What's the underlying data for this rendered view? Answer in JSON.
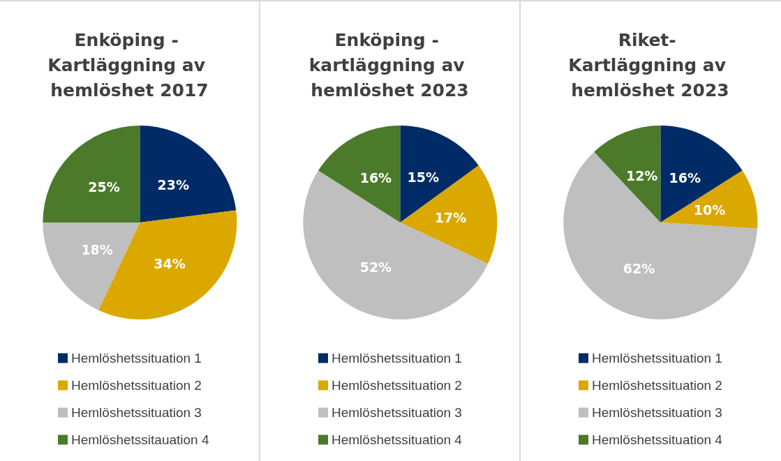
{
  "chart_data": [
    {
      "type": "pie",
      "title": "Enköping - Kartläggning av hemlöshet 2017",
      "categories": [
        "Hemlöshetssituation 1",
        "Hemlöshetssituation 2",
        "Hemlöshetssituation 3",
        "Hemlöshetssitauation 4"
      ],
      "values": [
        23,
        34,
        18,
        25
      ],
      "value_labels": [
        "23%",
        "34%",
        "18%",
        "25%"
      ],
      "colors": [
        "#002b66",
        "#dba800",
        "#bfbfbf",
        "#4a7a2a"
      ],
      "legend": "bottom"
    },
    {
      "type": "pie",
      "title": "Enköping - kartläggning av hemlöshet 2023",
      "categories": [
        "Hemlöshetssituation 1",
        "Hemlöshetssituation 2",
        "Hemlöshetssituation 3",
        "Hemlöshetssituation 4"
      ],
      "values": [
        15,
        17,
        52,
        16
      ],
      "value_labels": [
        "15%",
        "17%",
        "52%",
        "16%"
      ],
      "colors": [
        "#002b66",
        "#dba800",
        "#bfbfbf",
        "#4a7a2a"
      ],
      "legend": "bottom"
    },
    {
      "type": "pie",
      "title": "Riket- Kartläggning av hemlöshet 2023",
      "categories": [
        "Hemlöshetssituation 1",
        "Hemlöshetssituation 2",
        "Hemlöshetssituation 3",
        "Hemlöshetssituation 4"
      ],
      "values": [
        16,
        10,
        62,
        12
      ],
      "value_labels": [
        "16%",
        "10%",
        "62%",
        "12%"
      ],
      "colors": [
        "#002b66",
        "#dba800",
        "#bfbfbf",
        "#4a7a2a"
      ],
      "legend": "bottom"
    }
  ]
}
